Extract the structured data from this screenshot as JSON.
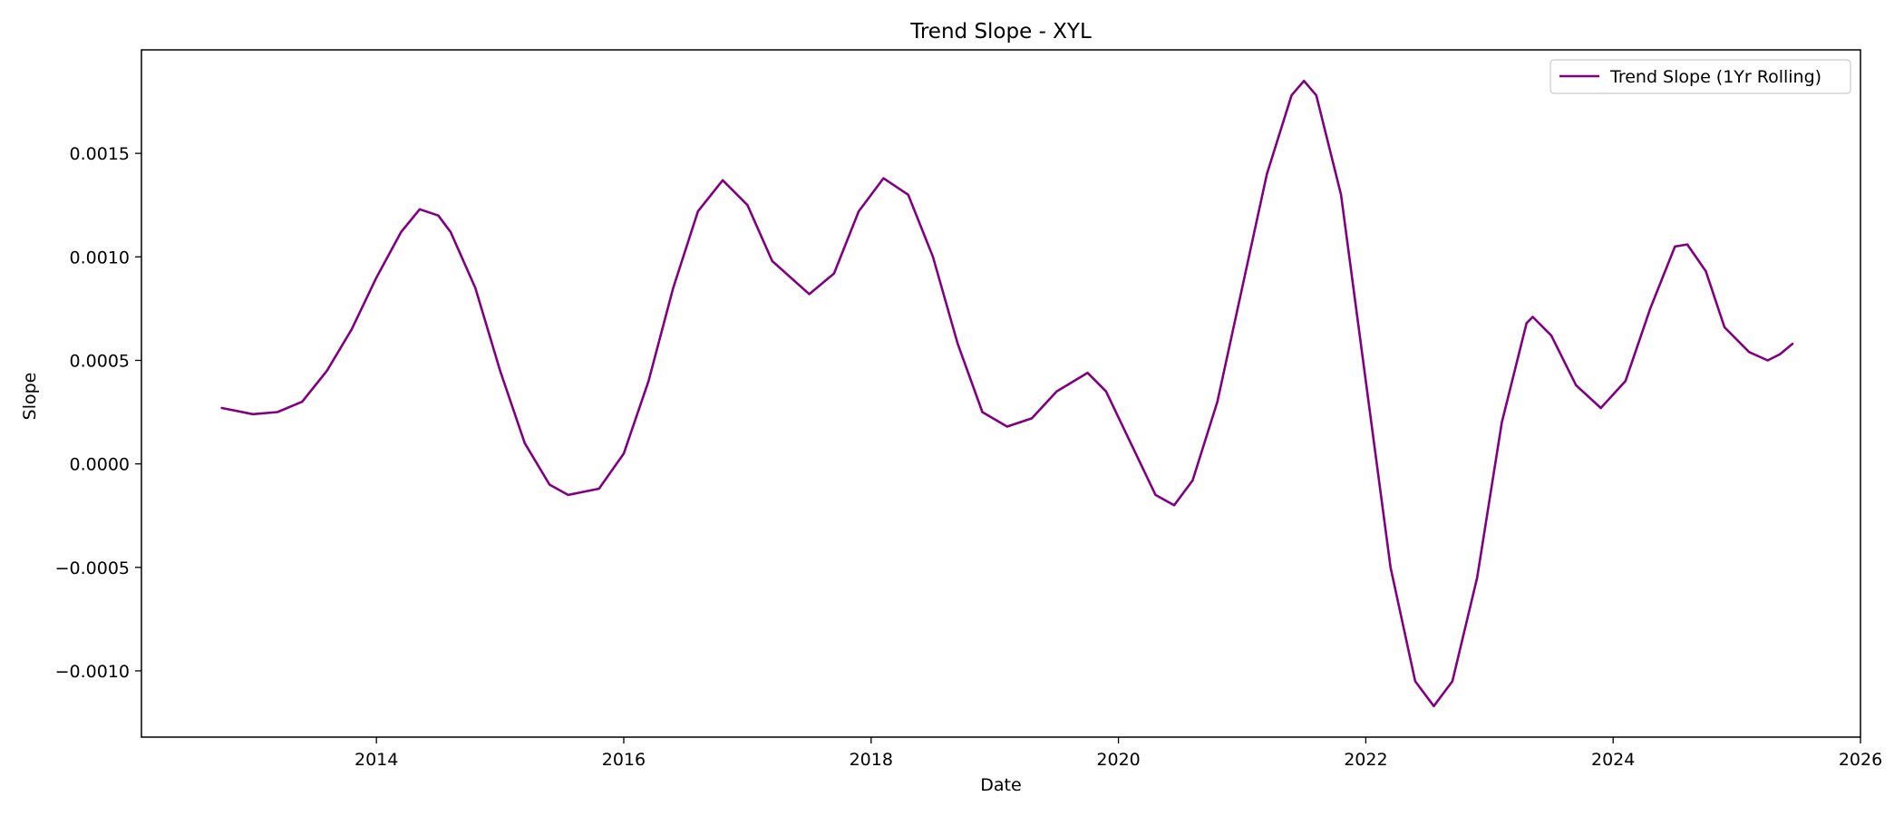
{
  "chart_data": {
    "type": "line",
    "title": "Trend Slope - XYL",
    "xlabel": "Date",
    "ylabel": "Slope",
    "xlim": [
      2012.1,
      2026.0
    ],
    "ylim": [
      -0.00132,
      0.002
    ],
    "x_ticks": [
      2014,
      2016,
      2018,
      2020,
      2022,
      2024,
      2026
    ],
    "x_tick_labels": [
      "2014",
      "2016",
      "2018",
      "2020",
      "2022",
      "2024",
      "2026"
    ],
    "y_ticks": [
      -0.001,
      -0.0005,
      0.0,
      0.0005,
      0.001,
      0.0015
    ],
    "y_tick_labels": [
      "−0.0010",
      "−0.0005",
      "0.0000",
      "0.0005",
      "0.0010",
      "0.0015"
    ],
    "grid": false,
    "legend": {
      "position": "top-right",
      "entries": [
        "Trend Slope (1Yr Rolling)"
      ]
    },
    "series": [
      {
        "name": "Trend Slope (1Yr Rolling)",
        "color": "#800080",
        "points": [
          [
            2012.75,
            0.00027
          ],
          [
            2013.0,
            0.00024
          ],
          [
            2013.2,
            0.00025
          ],
          [
            2013.4,
            0.0003
          ],
          [
            2013.6,
            0.00045
          ],
          [
            2013.8,
            0.00065
          ],
          [
            2014.0,
            0.0009
          ],
          [
            2014.2,
            0.00112
          ],
          [
            2014.35,
            0.00123
          ],
          [
            2014.5,
            0.0012
          ],
          [
            2014.6,
            0.00112
          ],
          [
            2014.8,
            0.00085
          ],
          [
            2015.0,
            0.00045
          ],
          [
            2015.2,
            0.0001
          ],
          [
            2015.4,
            -0.0001
          ],
          [
            2015.55,
            -0.00015
          ],
          [
            2015.8,
            -0.00012
          ],
          [
            2016.0,
            5e-05
          ],
          [
            2016.2,
            0.0004
          ],
          [
            2016.4,
            0.00085
          ],
          [
            2016.6,
            0.00122
          ],
          [
            2016.8,
            0.00137
          ],
          [
            2017.0,
            0.00125
          ],
          [
            2017.2,
            0.00098
          ],
          [
            2017.5,
            0.00082
          ],
          [
            2017.7,
            0.00092
          ],
          [
            2017.9,
            0.00122
          ],
          [
            2018.1,
            0.00138
          ],
          [
            2018.3,
            0.0013
          ],
          [
            2018.5,
            0.001
          ],
          [
            2018.7,
            0.00058
          ],
          [
            2018.9,
            0.00025
          ],
          [
            2019.1,
            0.00018
          ],
          [
            2019.3,
            0.00022
          ],
          [
            2019.5,
            0.00035
          ],
          [
            2019.75,
            0.00044
          ],
          [
            2019.9,
            0.00035
          ],
          [
            2020.1,
            0.0001
          ],
          [
            2020.3,
            -0.00015
          ],
          [
            2020.45,
            -0.0002
          ],
          [
            2020.6,
            -8e-05
          ],
          [
            2020.8,
            0.0003
          ],
          [
            2021.0,
            0.00085
          ],
          [
            2021.2,
            0.0014
          ],
          [
            2021.4,
            0.00178
          ],
          [
            2021.5,
            0.00185
          ],
          [
            2021.6,
            0.00178
          ],
          [
            2021.8,
            0.0013
          ],
          [
            2022.0,
            0.0004
          ],
          [
            2022.2,
            -0.0005
          ],
          [
            2022.4,
            -0.00105
          ],
          [
            2022.55,
            -0.00117
          ],
          [
            2022.7,
            -0.00105
          ],
          [
            2022.9,
            -0.00055
          ],
          [
            2023.1,
            0.0002
          ],
          [
            2023.3,
            0.00068
          ],
          [
            2023.35,
            0.00071
          ],
          [
            2023.5,
            0.00062
          ],
          [
            2023.7,
            0.00038
          ],
          [
            2023.9,
            0.00027
          ],
          [
            2024.1,
            0.0004
          ],
          [
            2024.3,
            0.00075
          ],
          [
            2024.5,
            0.00105
          ],
          [
            2024.6,
            0.00106
          ],
          [
            2024.75,
            0.00093
          ],
          [
            2024.9,
            0.00066
          ],
          [
            2025.1,
            0.00054
          ],
          [
            2025.25,
            0.0005
          ],
          [
            2025.35,
            0.00053
          ],
          [
            2025.45,
            0.00058
          ]
        ]
      }
    ]
  }
}
